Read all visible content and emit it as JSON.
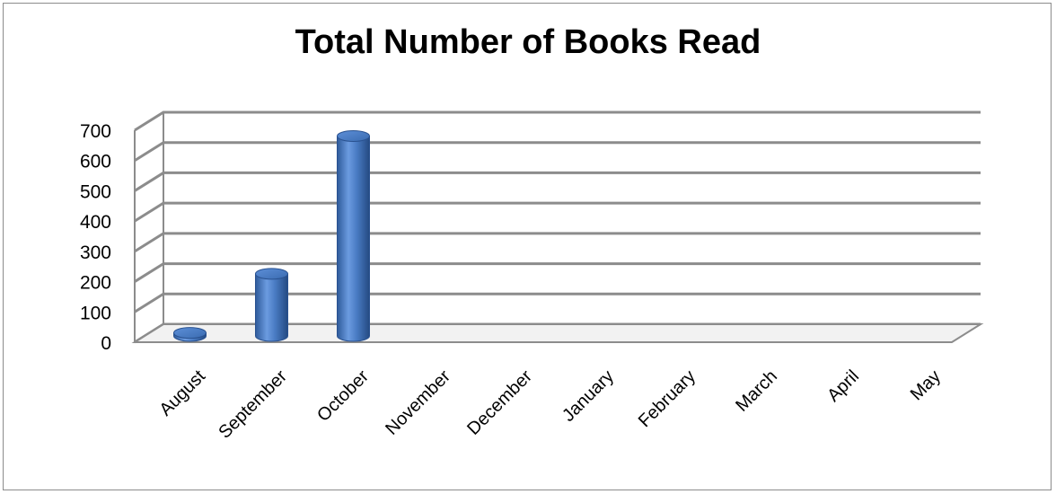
{
  "chart_data": {
    "type": "bar",
    "style": "3d-cylinder",
    "title": "Total Number of Books Read",
    "xlabel": "",
    "ylabel": "",
    "categories": [
      "August",
      "September",
      "October",
      "November",
      "December",
      "January",
      "February",
      "March",
      "April",
      "May"
    ],
    "series": [
      {
        "values": [
          10,
          205,
          660,
          0,
          0,
          0,
          0,
          0,
          0,
          0
        ]
      }
    ],
    "ylim": [
      0,
      700
    ],
    "yticks": [
      "0",
      "100",
      "200",
      "300",
      "400",
      "500",
      "600",
      "700"
    ],
    "grid": true,
    "legend": "none",
    "colors": {
      "bar": "#4f81bd",
      "gridline": "#8c8c8c"
    }
  }
}
